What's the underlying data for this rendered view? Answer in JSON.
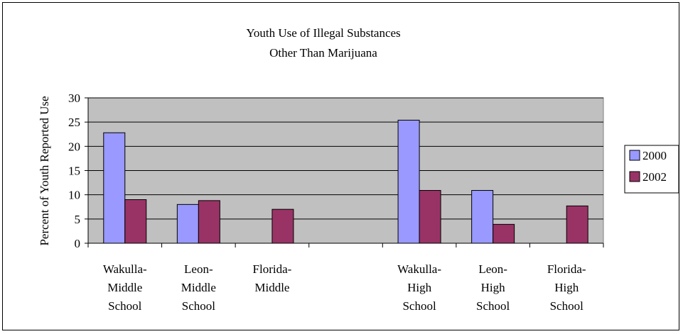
{
  "chart_data": {
    "type": "bar",
    "title": [
      "Youth Use of Illegal Substances",
      "Other Than Marijuana"
    ],
    "ylabel": "Percent of Youth Reported Use",
    "xlabel": "",
    "ylim": [
      0,
      30
    ],
    "yticks": [
      0,
      5,
      10,
      15,
      20,
      25,
      30
    ],
    "grid": true,
    "legend_position": "right",
    "categories": [
      [
        "Wakulla-",
        "Middle",
        "School"
      ],
      [
        "Leon-",
        "Middle",
        "School"
      ],
      [
        "Florida-",
        "Middle"
      ],
      [],
      [
        "Wakulla-",
        "High",
        "School"
      ],
      [
        "Leon-",
        "High",
        "School"
      ],
      [
        "Florida-",
        "High",
        "School"
      ]
    ],
    "series": [
      {
        "name": "2000",
        "color": "#9999ff",
        "values": [
          22.8,
          8.0,
          null,
          null,
          25.4,
          10.9,
          null
        ]
      },
      {
        "name": "2002",
        "color": "#993366",
        "values": [
          9.0,
          8.8,
          7.0,
          null,
          10.9,
          3.9,
          7.7
        ]
      }
    ],
    "plot_background": "#c0c0c0"
  }
}
